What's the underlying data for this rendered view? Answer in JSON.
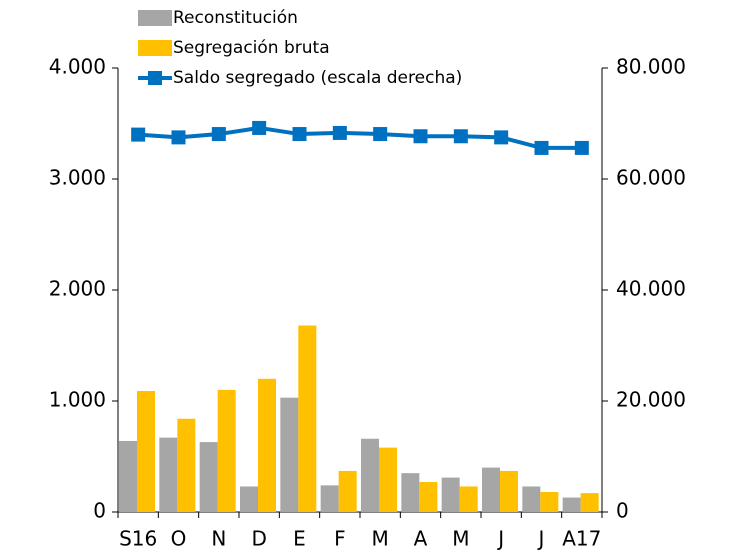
{
  "chart_data": {
    "type": "bar",
    "categories": [
      "S16",
      "O",
      "N",
      "D",
      "E",
      "F",
      "M",
      "A",
      "M",
      "J",
      "J",
      "A17"
    ],
    "series": [
      {
        "name": "Reconstitución",
        "color": "#a6a6a6",
        "values": [
          640,
          670,
          630,
          230,
          1030,
          240,
          660,
          350,
          310,
          400,
          230,
          130
        ]
      },
      {
        "name": "Segregación bruta",
        "color": "#ffc000",
        "values": [
          1090,
          840,
          1100,
          1200,
          1680,
          370,
          580,
          270,
          230,
          370,
          180,
          170
        ]
      },
      {
        "name": "Saldo segregado (escala derecha)",
        "color": "#0070c0",
        "type": "line",
        "axis": "y2",
        "values": [
          68000,
          67500,
          68100,
          69200,
          68100,
          68300,
          68100,
          67700,
          67700,
          67500,
          65600,
          65600
        ]
      }
    ],
    "ylim": [
      0,
      4000
    ],
    "yticks": [
      0,
      {
        "value": 1000,
        "label": "1.000"
      },
      {
        "value": 2000,
        "label": "2.000"
      },
      {
        "value": 3000,
        "label": "3.000"
      },
      {
        "value": 4000,
        "label": "4.000"
      }
    ],
    "y2lim": [
      0,
      80000
    ],
    "y2ticks": [
      0,
      {
        "value": 20000,
        "label": "20.000"
      },
      {
        "value": 40000,
        "label": "40.000"
      },
      {
        "value": 60000,
        "label": "60.000"
      },
      {
        "value": 80000,
        "label": "80.000"
      }
    ],
    "legend": "top"
  }
}
